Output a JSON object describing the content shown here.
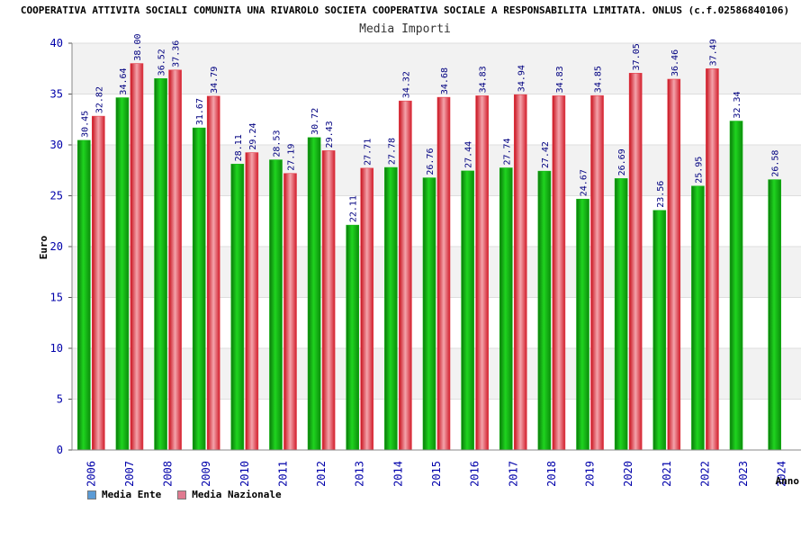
{
  "header": {
    "title": "COOPERATIVA ATTIVITA SOCIALI COMUNITA UNA RIVAROLO SOCIETA COOPERATIVA SOCIALE A RESPONSABILITA LIMITATA. ONLUS (c.f.02586840106)"
  },
  "colors": {
    "ente": "#12b612",
    "nazionale": "#e43a46",
    "legend_ente": "#5b9bd5",
    "legend_nazionale": "#e07a90",
    "axis_text": "#0000aa",
    "value_text": "#000080"
  },
  "chart_data": {
    "type": "bar",
    "title": "Media Importi",
    "xlabel": "Anno",
    "ylabel": "Euro",
    "ylim": [
      0,
      40
    ],
    "yticks": [
      0,
      5,
      10,
      15,
      20,
      25,
      30,
      35,
      40
    ],
    "categories": [
      "2006",
      "2007",
      "2008",
      "2009",
      "2010",
      "2011",
      "2012",
      "2013",
      "2014",
      "2015",
      "2016",
      "2017",
      "2018",
      "2019",
      "2020",
      "2021",
      "2022",
      "2023",
      "2024"
    ],
    "series": [
      {
        "name": "Media Ente",
        "values": [
          30.45,
          34.64,
          36.52,
          31.67,
          28.11,
          28.53,
          30.72,
          22.11,
          27.78,
          26.76,
          27.44,
          27.74,
          27.42,
          24.67,
          26.69,
          23.56,
          25.95,
          32.34,
          26.58
        ],
        "labels": [
          "30.45",
          "34.64",
          "36.52",
          "31.67",
          "28.11",
          "28.53",
          "30.72",
          "22.11",
          "27.78",
          "26.76",
          "27.44",
          "27.74",
          "27.42",
          "24.67",
          "26.69",
          "23.56",
          "25.95",
          "32.34",
          "26.58"
        ]
      },
      {
        "name": "Media Nazionale",
        "values": [
          32.82,
          38.0,
          37.36,
          34.79,
          29.24,
          27.19,
          29.43,
          27.71,
          34.32,
          34.68,
          34.83,
          34.94,
          34.83,
          34.85,
          37.05,
          36.46,
          37.49,
          null,
          null
        ],
        "labels": [
          "32.82",
          "38.00",
          "37.36",
          "34.79",
          "29.24",
          "27.19",
          "29.43",
          "27.71",
          "34.32",
          "34.68",
          "34.83",
          "34.94",
          "34.83",
          "34.85",
          "37.05",
          "36.46",
          "37.49",
          null,
          null
        ]
      }
    ],
    "legend": [
      "Media Ente",
      "Media Nazionale"
    ],
    "legend_position": "bottom-left"
  }
}
